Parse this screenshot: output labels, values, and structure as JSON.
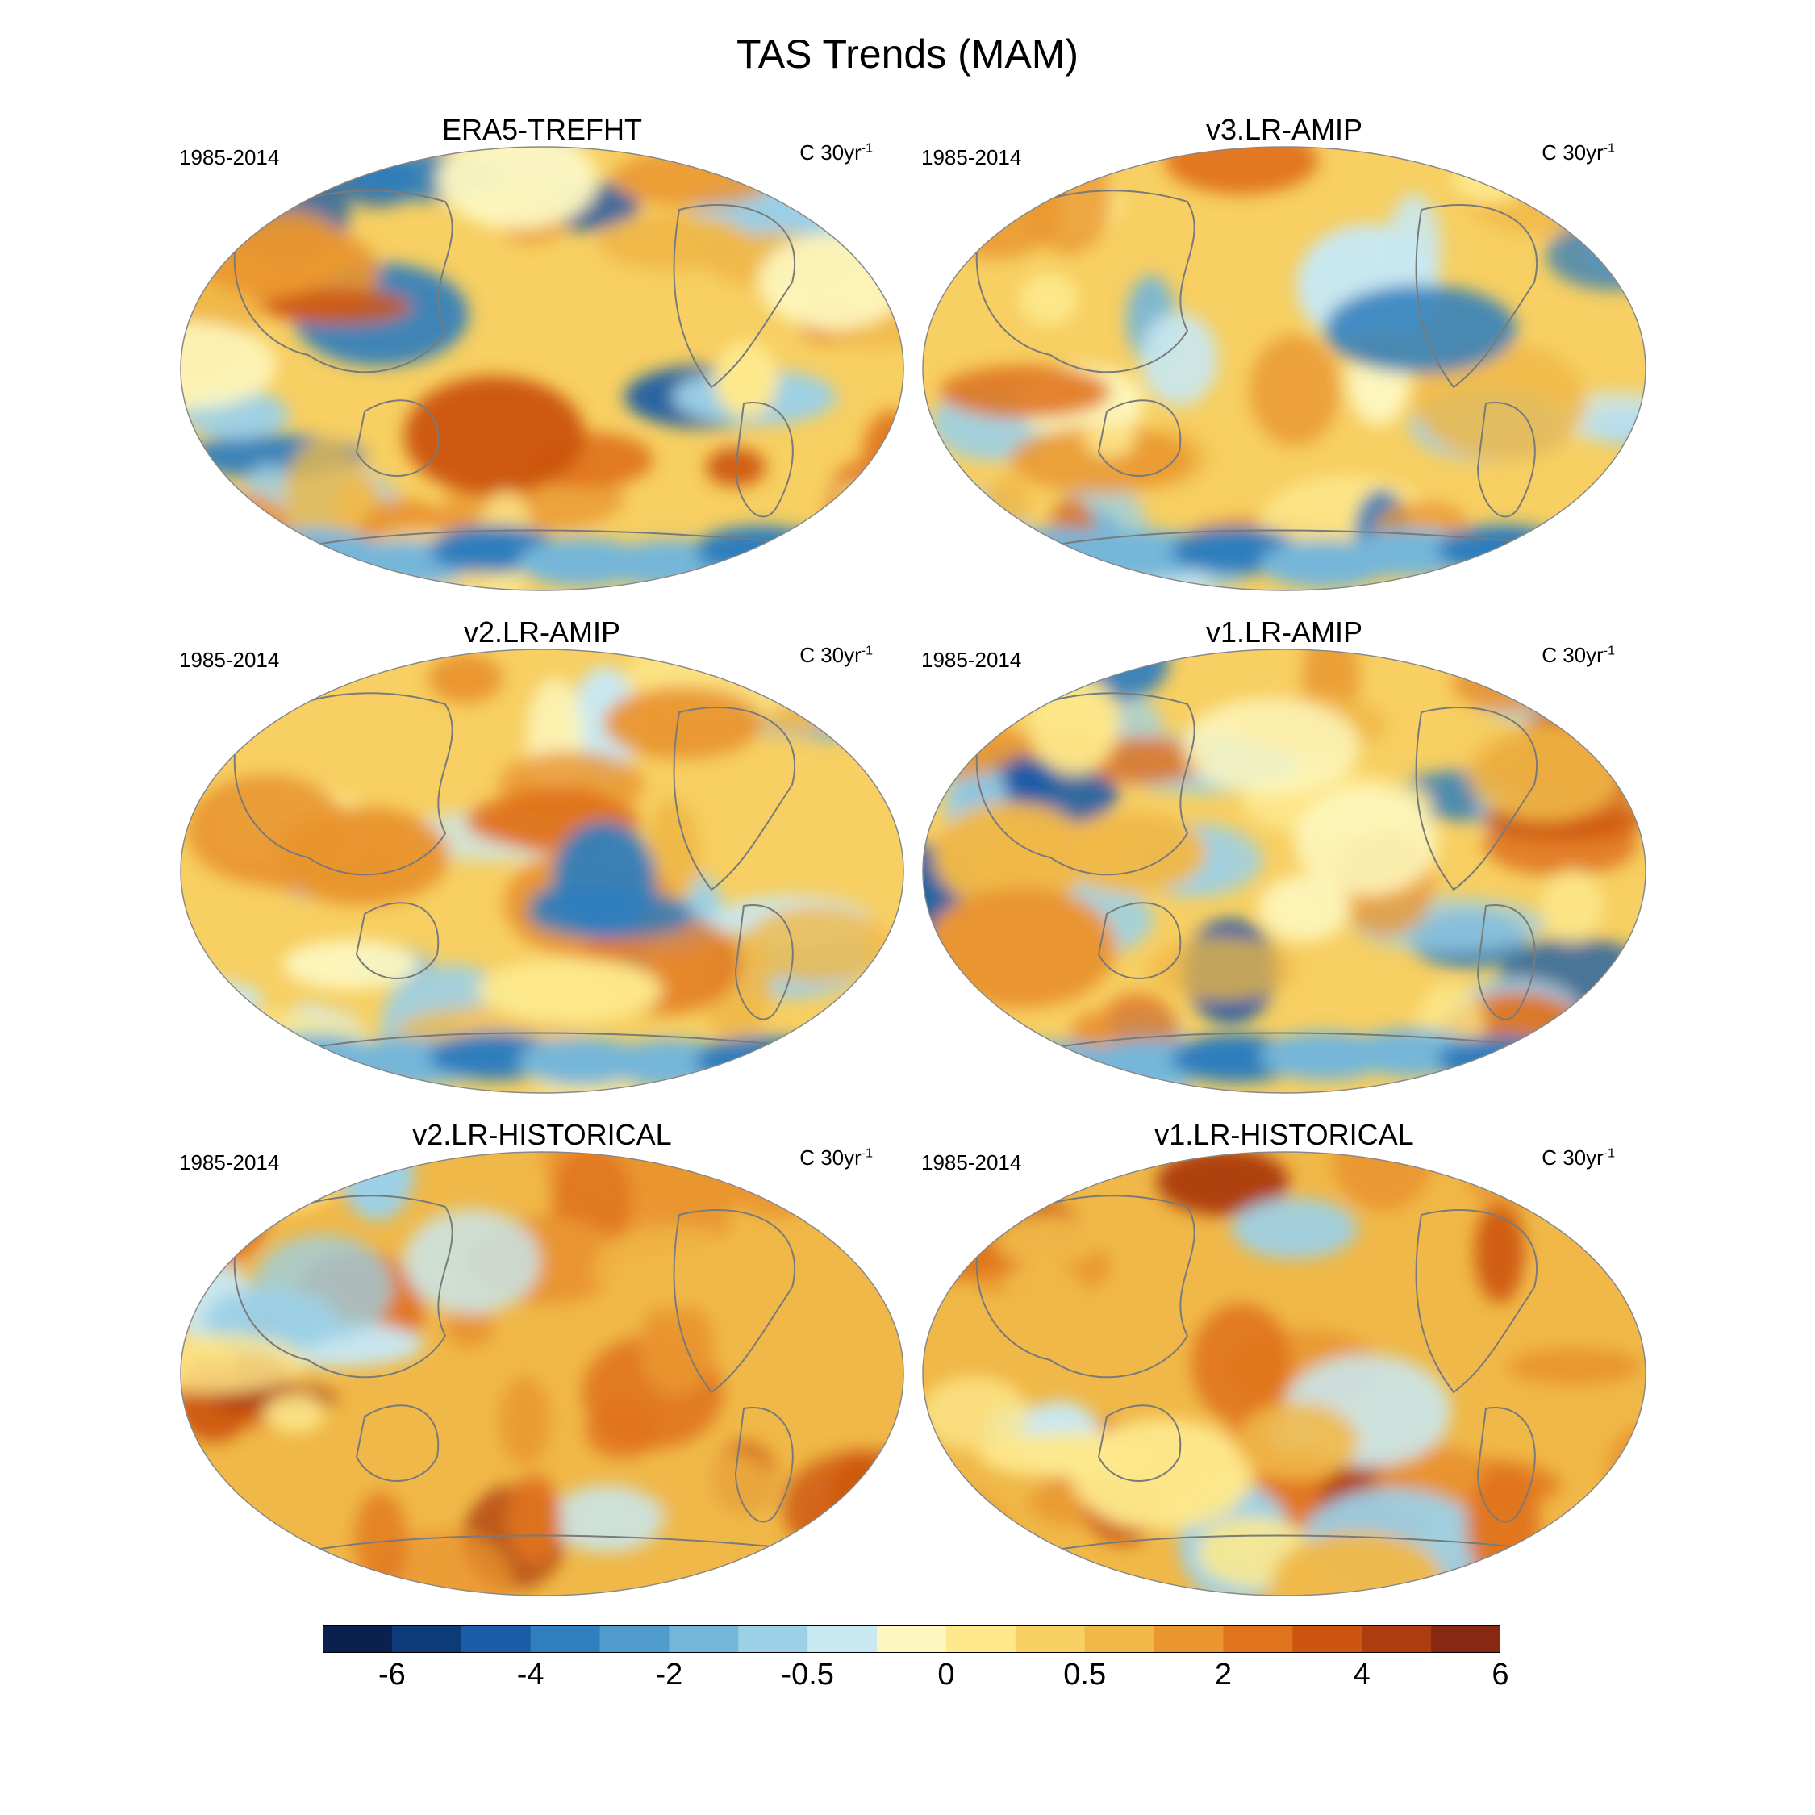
{
  "title": "TAS Trends (MAM)",
  "panels": [
    {
      "title": "ERA5-TREFHT",
      "period": "1985-2014",
      "units": "C 30yr",
      "units_sup": "-1",
      "theme": "mixed"
    },
    {
      "title": "v3.LR-AMIP",
      "period": "1985-2014",
      "units": "C 30yr",
      "units_sup": "-1",
      "theme": "mild"
    },
    {
      "title": "v2.LR-AMIP",
      "period": "1985-2014",
      "units": "C 30yr",
      "units_sup": "-1",
      "theme": "mild"
    },
    {
      "title": "v1.LR-AMIP",
      "period": "1985-2014",
      "units": "C 30yr",
      "units_sup": "-1",
      "theme": "mixed"
    },
    {
      "title": "v2.LR-HISTORICAL",
      "period": "1985-2014",
      "units": "C 30yr",
      "units_sup": "-1",
      "theme": "warm"
    },
    {
      "title": "v1.LR-HISTORICAL",
      "period": "1985-2014",
      "units": "C 30yr",
      "units_sup": "-1",
      "theme": "warm"
    }
  ],
  "chart_data": {
    "type": "heatmap",
    "title": "TAS Trends (MAM)",
    "projection": "Winkel tripel (Pacific-centered)",
    "colorbar": {
      "colors": [
        "#0a2150",
        "#0d3a78",
        "#1a5ca6",
        "#2f7ebd",
        "#4f9ccc",
        "#74b6d9",
        "#9cd0e6",
        "#c8e8f2",
        "#fdf7bf",
        "#fde88c",
        "#f7cf62",
        "#f0b848",
        "#e99530",
        "#e0731d",
        "#cc5510",
        "#ad3d0e",
        "#862812"
      ],
      "tick_labels": [
        "-6",
        "-4",
        "-2",
        "-0.5",
        "0",
        "0.5",
        "2",
        "4",
        "6"
      ],
      "tick_boundaries": [
        1,
        3,
        5,
        7,
        9,
        11,
        13,
        15,
        17
      ]
    }
  }
}
